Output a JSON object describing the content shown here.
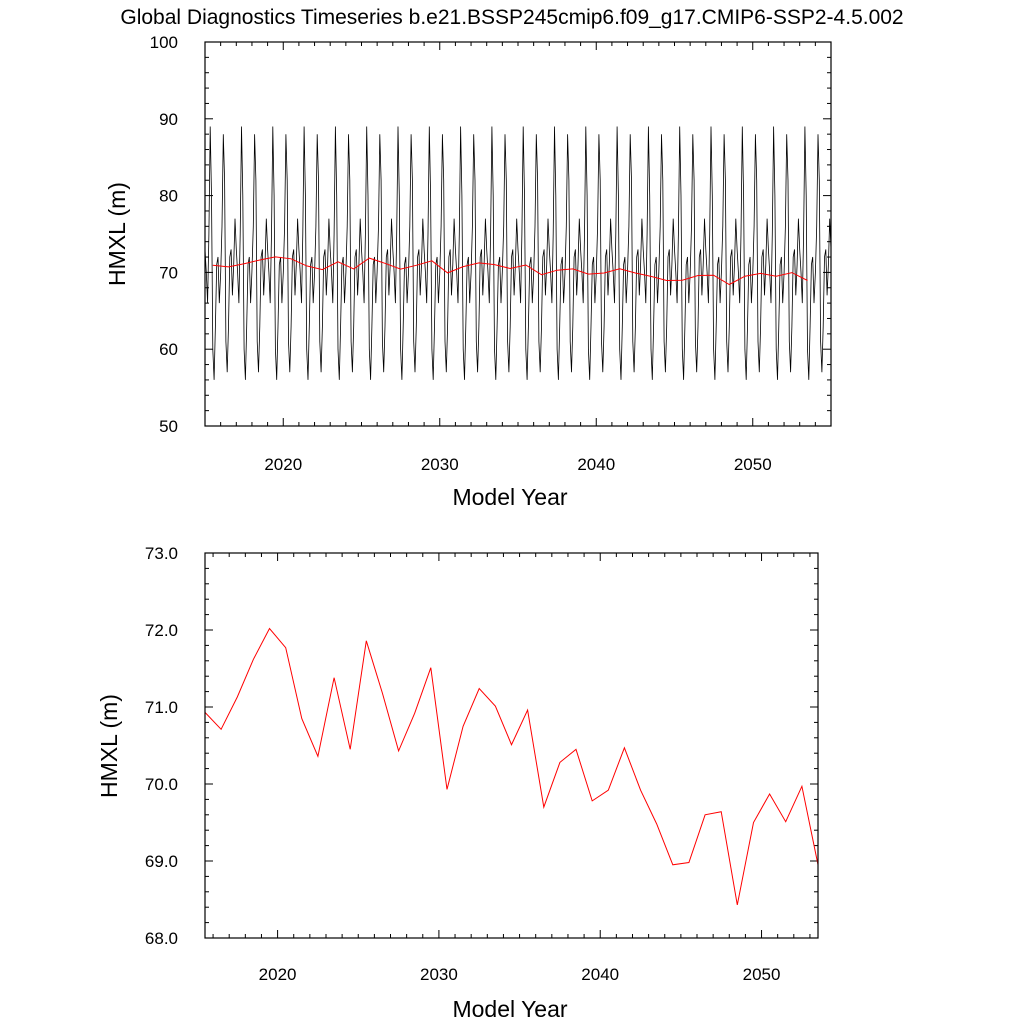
{
  "page": {
    "title": "Global Diagnostics Timeseries b.e21.BSSP245cmip6.f09_g17.CMIP6-SSP2-4.5.002"
  },
  "chart_data": [
    {
      "type": "line",
      "xlabel": "Model Year",
      "ylabel": "HMXL (m)",
      "xlim": [
        2015,
        2055
      ],
      "ylim": [
        50,
        100
      ],
      "x_ticks": [
        2020,
        2030,
        2040,
        2050
      ],
      "x_tick_labels": [
        "2020",
        "2030",
        "2040",
        "2050"
      ],
      "y_ticks": [
        50,
        60,
        70,
        80,
        90,
        100
      ],
      "y_tick_labels": [
        "50",
        "60",
        "70",
        "80",
        "90",
        "100"
      ],
      "grid": false,
      "series": [
        {
          "kind": "monthly",
          "color": "#000000",
          "x": [
            2015.0,
            2015.08,
            2015.17,
            2015.25,
            2015.33,
            2015.42,
            2015.5,
            2015.58,
            2015.67,
            2015.75,
            2015.83,
            2015.92,
            2016.0,
            2016.08,
            2016.17,
            2016.25,
            2016.33,
            2016.42,
            2016.5,
            2016.58,
            2016.67,
            2016.75,
            2016.83,
            2016.92
          ],
          "y": [
            73,
            70,
            66,
            75,
            89,
            80,
            60,
            56,
            63,
            71,
            72,
            66,
            70,
            76,
            88,
            82,
            61,
            57,
            63,
            72,
            73,
            67,
            71,
            77
          ]
        },
        {
          "kind": "annual",
          "color": "#ff0000",
          "x": [
            2015.5,
            2016.5,
            2017.5,
            2018.5,
            2019.5,
            2020.5,
            2021.5,
            2022.5,
            2023.5,
            2024.5,
            2025.5,
            2026.5,
            2027.5,
            2028.5,
            2029.5,
            2030.5,
            2031.5,
            2032.5,
            2033.5,
            2034.5,
            2035.5,
            2036.5,
            2037.5,
            2038.5,
            2039.5,
            2040.5,
            2041.5,
            2042.5,
            2043.5,
            2044.5,
            2045.5,
            2046.5,
            2047.5,
            2048.5,
            2049.5,
            2050.5,
            2051.5,
            2052.5,
            2053.5
          ],
          "y": [
            70.93,
            70.71,
            71.13,
            71.62,
            72.02,
            71.77,
            70.85,
            70.36,
            71.38,
            70.45,
            71.86,
            71.18,
            70.43,
            70.92,
            71.51,
            69.93,
            70.75,
            71.24,
            71.01,
            70.51,
            70.96,
            69.7,
            70.28,
            70.45,
            69.78,
            69.92,
            70.47,
            69.92,
            69.48,
            68.95,
            68.98,
            69.6,
            69.64,
            68.43,
            69.5,
            69.87,
            69.51,
            69.97,
            68.95
          ]
        }
      ]
    },
    {
      "type": "line",
      "xlabel": "Model Year",
      "ylabel": "HMXL (m)",
      "xlim": [
        2015.5,
        2053.5
      ],
      "ylim": [
        68.0,
        73.0
      ],
      "x_ticks": [
        2020,
        2030,
        2040,
        2050
      ],
      "x_tick_labels": [
        "2020",
        "2030",
        "2040",
        "2050"
      ],
      "y_ticks": [
        68.0,
        69.0,
        70.0,
        71.0,
        72.0,
        73.0
      ],
      "y_tick_labels": [
        "68.0",
        "69.0",
        "70.0",
        "71.0",
        "72.0",
        "73.0"
      ],
      "grid": false,
      "series": [
        {
          "kind": "annual",
          "color": "#ff0000",
          "x": [
            2015.5,
            2016.5,
            2017.5,
            2018.5,
            2019.5,
            2020.5,
            2021.5,
            2022.5,
            2023.5,
            2024.5,
            2025.5,
            2026.5,
            2027.5,
            2028.5,
            2029.5,
            2030.5,
            2031.5,
            2032.5,
            2033.5,
            2034.5,
            2035.5,
            2036.5,
            2037.5,
            2038.5,
            2039.5,
            2040.5,
            2041.5,
            2042.5,
            2043.5,
            2044.5,
            2045.5,
            2046.5,
            2047.5,
            2048.5,
            2049.5,
            2050.5,
            2051.5,
            2052.5,
            2053.5
          ],
          "y": [
            70.93,
            70.71,
            71.13,
            71.62,
            72.02,
            71.77,
            70.85,
            70.36,
            71.38,
            70.45,
            71.86,
            71.18,
            70.43,
            70.92,
            71.51,
            69.93,
            70.75,
            71.24,
            71.01,
            70.51,
            70.96,
            69.7,
            70.28,
            70.45,
            69.78,
            69.92,
            70.47,
            69.92,
            69.48,
            68.95,
            68.98,
            69.6,
            69.64,
            68.43,
            69.5,
            69.87,
            69.51,
            69.97,
            68.95
          ]
        }
      ]
    }
  ]
}
